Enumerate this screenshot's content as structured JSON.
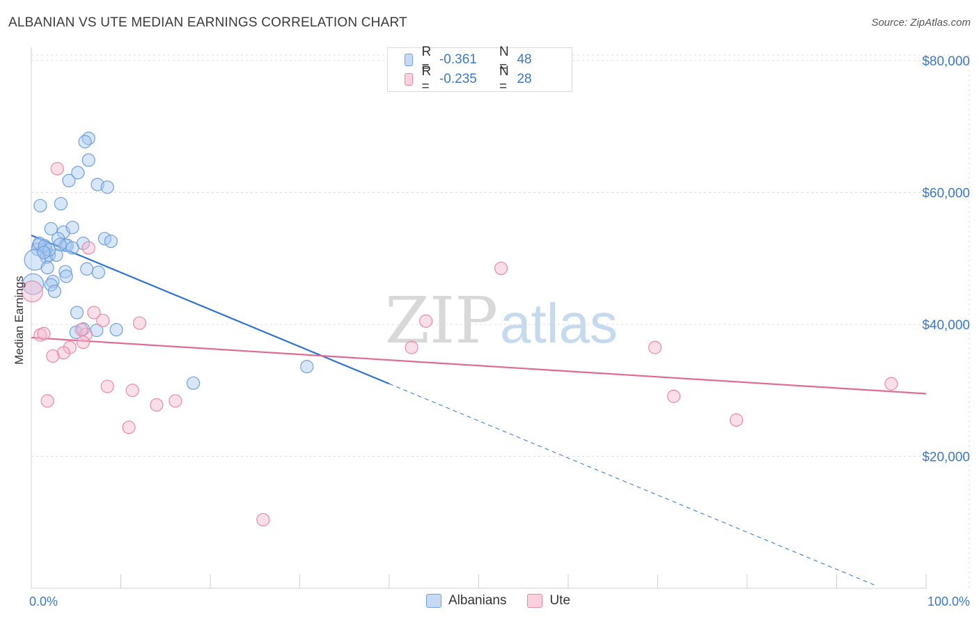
{
  "title": "ALBANIAN VS UTE MEDIAN EARNINGS CORRELATION CHART",
  "source": "Source: ZipAtlas.com",
  "watermark": {
    "zip": "ZIP",
    "atlas": "atlas"
  },
  "legend": [
    {
      "r_label": "R =",
      "r_value": "-0.361",
      "n_label": "N =",
      "n_value": "48",
      "color": "#a7c8f0",
      "border": "#6fa0dc"
    },
    {
      "r_label": "R =",
      "r_value": "-0.235",
      "n_label": "N =",
      "n_value": "28",
      "color": "#f7b8cc",
      "border": "#e889a8"
    }
  ],
  "bottom_legend": [
    "Albanians",
    "Ute"
  ],
  "chart_data": {
    "type": "scatter",
    "title": "ALBANIAN VS UTE MEDIAN EARNINGS CORRELATION CHART",
    "xlabel": "",
    "ylabel": "Median Earnings",
    "xlim": [
      0,
      100
    ],
    "ylim": [
      0,
      82000
    ],
    "x_tick_labels": [
      {
        "x": 0,
        "label": "0.0%"
      },
      {
        "x": 100,
        "label": "100.0%"
      }
    ],
    "y_ticks": [
      {
        "y": 20000,
        "label": "$20,000"
      },
      {
        "y": 40000,
        "label": "$40,000"
      },
      {
        "y": 60000,
        "label": "$60,000"
      },
      {
        "y": 80000,
        "label": "$80,000"
      }
    ],
    "grid": true,
    "legend_position": "top-center",
    "series": [
      {
        "name": "Albanians",
        "color": "#6fa0dc",
        "fill": "#a7c8f0",
        "points": [
          [
            6.4,
            68200
          ],
          [
            6.0,
            67700
          ],
          [
            6.4,
            64900
          ],
          [
            5.2,
            63000
          ],
          [
            4.2,
            61800
          ],
          [
            7.4,
            61200
          ],
          [
            8.5,
            60800
          ],
          [
            1.0,
            58000
          ],
          [
            3.3,
            58300
          ],
          [
            2.2,
            54500
          ],
          [
            3.6,
            54000
          ],
          [
            4.6,
            54700
          ],
          [
            3.0,
            53000
          ],
          [
            8.2,
            53000
          ],
          [
            8.9,
            52600
          ],
          [
            0.8,
            52000
          ],
          [
            1.6,
            51500
          ],
          [
            1.3,
            51200
          ],
          [
            0.7,
            51400
          ],
          [
            2.0,
            50500
          ],
          [
            3.8,
            52000
          ],
          [
            5.8,
            52300
          ],
          [
            1.7,
            50200
          ],
          [
            2.8,
            50500
          ],
          [
            4.0,
            52000
          ],
          [
            0.4,
            49800
          ],
          [
            1.8,
            48600
          ],
          [
            6.2,
            48400
          ],
          [
            3.8,
            48000
          ],
          [
            7.5,
            47900
          ],
          [
            3.9,
            47300
          ],
          [
            2.4,
            46500
          ],
          [
            0.2,
            46100
          ],
          [
            2.2,
            46000
          ],
          [
            2.6,
            45000
          ],
          [
            5.1,
            41800
          ],
          [
            5.0,
            38800
          ],
          [
            5.8,
            39300
          ],
          [
            7.3,
            39100
          ],
          [
            9.5,
            39200
          ],
          [
            18.1,
            31100
          ],
          [
            30.8,
            33600
          ],
          [
            4.6,
            51600
          ],
          [
            0.9,
            52300
          ],
          [
            1.5,
            51900
          ],
          [
            2.0,
            51300
          ],
          [
            1.4,
            50900
          ],
          [
            3.2,
            52100
          ]
        ],
        "trend": {
          "x0": 0,
          "y0": 53500,
          "x1": 40,
          "y1": 31000,
          "dash_to_x": 94.5
        }
      },
      {
        "name": "Ute",
        "color": "#e889a8",
        "fill": "#f7b8cc",
        "points": [
          [
            2.9,
            63600
          ],
          [
            6.4,
            51600
          ],
          [
            52.5,
            48500
          ],
          [
            0.1,
            45000
          ],
          [
            7.0,
            41800
          ],
          [
            8.0,
            40600
          ],
          [
            12.1,
            40200
          ],
          [
            44.1,
            40500
          ],
          [
            1.0,
            38400
          ],
          [
            1.4,
            38600
          ],
          [
            6.1,
            38500
          ],
          [
            5.8,
            37300
          ],
          [
            4.3,
            36500
          ],
          [
            42.5,
            36500
          ],
          [
            69.7,
            36500
          ],
          [
            3.6,
            35700
          ],
          [
            2.4,
            35200
          ],
          [
            8.5,
            30600
          ],
          [
            11.3,
            30000
          ],
          [
            1.8,
            28400
          ],
          [
            14.0,
            27800
          ],
          [
            16.1,
            28400
          ],
          [
            71.8,
            29100
          ],
          [
            96.1,
            31000
          ],
          [
            10.9,
            24400
          ],
          [
            78.8,
            25500
          ],
          [
            25.9,
            10400
          ],
          [
            5.6,
            39200
          ]
        ],
        "trend": {
          "x0": 0,
          "y0": 38000,
          "x1": 100,
          "y1": 29500
        }
      }
    ]
  }
}
